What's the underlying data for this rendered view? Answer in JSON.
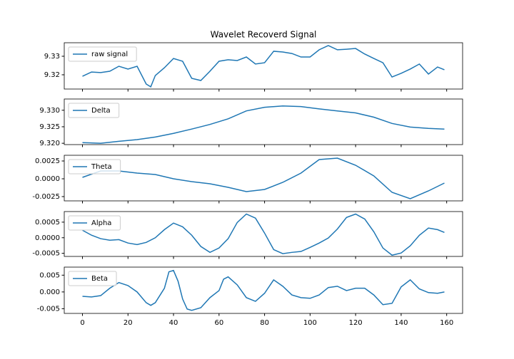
{
  "chart_data": [
    {
      "type": "line",
      "title": "Wavelet Recoverd Signal",
      "x": [
        0,
        4,
        8,
        12,
        16,
        20,
        24,
        28,
        30,
        32,
        36,
        40,
        44,
        48,
        52,
        56,
        60,
        64,
        68,
        72,
        76,
        80,
        84,
        88,
        92,
        96,
        100,
        104,
        108,
        112,
        116,
        120,
        124,
        128,
        132,
        136,
        140,
        144,
        148,
        152,
        156,
        159
      ],
      "series": [
        {
          "name": "raw signal",
          "color": "#1f77b4",
          "values": [
            9.3192,
            9.3215,
            9.3212,
            9.3219,
            9.3246,
            9.3231,
            9.3246,
            9.315,
            9.3135,
            9.3196,
            9.3238,
            9.3288,
            9.3273,
            9.3181,
            9.3169,
            9.3219,
            9.3273,
            9.3281,
            9.3277,
            9.3296,
            9.3258,
            9.3265,
            9.3327,
            9.3323,
            9.3315,
            9.3296,
            9.3296,
            9.3335,
            9.3358,
            9.3335,
            9.3338,
            9.3342,
            9.3312,
            9.3288,
            9.3265,
            9.3188,
            9.3208,
            9.3231,
            9.3258,
            9.3204,
            9.3242,
            9.3227
          ]
        }
      ],
      "xlim": [
        -8,
        167
      ],
      "ylim": [
        9.3123,
        9.3373
      ],
      "yticks": [
        9.32,
        9.33
      ],
      "legend": "upper left"
    },
    {
      "type": "line",
      "x": [
        0,
        8,
        16,
        24,
        32,
        40,
        48,
        56,
        64,
        72,
        80,
        88,
        96,
        104,
        112,
        120,
        128,
        136,
        144,
        152,
        159
      ],
      "series": [
        {
          "name": "Delta",
          "color": "#1f77b4",
          "values": [
            9.3202,
            9.32,
            9.3206,
            9.3211,
            9.3219,
            9.323,
            9.3243,
            9.3257,
            9.3274,
            9.3298,
            9.3309,
            9.3313,
            9.3311,
            9.3304,
            9.3298,
            9.3292,
            9.3279,
            9.326,
            9.3249,
            9.3245,
            9.3243
          ]
        }
      ],
      "xlim": [
        -8,
        167
      ],
      "ylim": [
        9.3196,
        9.3334
      ],
      "yticks": [
        {
          "value": 9.32,
          "label": "9.320"
        },
        9.325,
        {
          "value": 9.33,
          "label": "9.330"
        }
      ],
      "legend": "upper left"
    },
    {
      "type": "line",
      "x": [
        0,
        8,
        16,
        24,
        32,
        40,
        48,
        56,
        64,
        72,
        80,
        88,
        96,
        104,
        112,
        120,
        128,
        136,
        144,
        152,
        159
      ],
      "series": [
        {
          "name": "Theta",
          "color": "#1f77b4",
          "values": [
            0.0002,
            0.0011,
            0.0011,
            0.0008,
            0.0006,
            0,
            -0.0004,
            -0.0007,
            -0.0012,
            -0.0018,
            -0.0015,
            -0.0005,
            0.0008,
            0.0027,
            0.0029,
            0.0019,
            0.0004,
            -0.0019,
            -0.0028,
            -0.0017,
            -0.0006
          ]
        }
      ],
      "xlim": [
        -8,
        167
      ],
      "ylim": [
        -0.0031,
        0.0033
      ],
      "yticks": [
        -0.0025,
        {
          "value": 0,
          "label": "0.0000"
        },
        0.0025
      ],
      "legend": "upper left"
    },
    {
      "type": "line",
      "x": [
        0,
        4,
        8,
        12,
        16,
        20,
        24,
        28,
        32,
        36,
        40,
        44,
        48,
        52,
        56,
        60,
        64,
        68,
        72,
        76,
        80,
        84,
        88,
        92,
        96,
        100,
        104,
        108,
        112,
        116,
        120,
        124,
        128,
        132,
        136,
        140,
        144,
        148,
        152,
        156,
        159
      ],
      "series": [
        {
          "name": "Alpha",
          "color": "#1f77b4",
          "values": [
            0.00024,
            8e-05,
            -3e-05,
            -8e-05,
            -6e-05,
            -0.00017,
            -0.00022,
            -0.00015,
            0,
            0.00026,
            0.00047,
            0.00035,
            8e-05,
            -0.00028,
            -0.00047,
            -0.00033,
            -3e-05,
            0.00049,
            0.00076,
            0.00063,
            0.00015,
            -0.00038,
            -0.00051,
            -0.00047,
            -0.00044,
            -0.00031,
            -0.00017,
            -1e-05,
            0.00028,
            0.00065,
            0.00076,
            0.0006,
            0.00019,
            -0.00033,
            -0.00056,
            -0.00049,
            -0.00026,
            8e-05,
            0.00031,
            0.00026,
            0.00017
          ]
        }
      ],
      "xlim": [
        -8,
        167
      ],
      "ylim": [
        -0.0006,
        0.00084
      ],
      "yticks": [
        -0.0005,
        {
          "value": 0,
          "label": "0.0000"
        },
        0.0005
      ],
      "legend": "upper left"
    },
    {
      "type": "line",
      "x": [
        0,
        4,
        8,
        12,
        16,
        20,
        24,
        28,
        30,
        32,
        36,
        38,
        40,
        42,
        44,
        46,
        48,
        52,
        56,
        60,
        62,
        64,
        68,
        72,
        76,
        80,
        84,
        88,
        92,
        96,
        100,
        104,
        108,
        112,
        116,
        120,
        124,
        128,
        132,
        136,
        140,
        144,
        148,
        152,
        156,
        159
      ],
      "series": [
        {
          "name": "Beta",
          "color": "#1f77b4",
          "values": [
            -0.0013,
            -0.0015,
            -0.0011,
            0.0011,
            0.0028,
            0.0019,
            0,
            -0.0032,
            -0.004,
            -0.0032,
            0.0011,
            0.006,
            0.0064,
            0.0032,
            -0.0021,
            -0.0051,
            -0.0055,
            -0.0047,
            -0.0017,
            0.0004,
            0.0038,
            0.0045,
            0.0021,
            -0.0017,
            -0.0028,
            -0.0004,
            0.0036,
            0.0017,
            -0.0009,
            -0.0017,
            -0.0019,
            -0.0009,
            0.0013,
            0.0017,
            0.0004,
            0.0011,
            0.0011,
            -0.0009,
            -0.0038,
            -0.0034,
            0.0015,
            0.0036,
            0.0009,
            -0.0002,
            -0.0004,
            0
          ]
        }
      ],
      "xlim": [
        -8,
        167
      ],
      "ylim": [
        -0.0064,
        0.0074
      ],
      "yticks": [
        -0.005,
        {
          "value": 0,
          "label": "0.000"
        },
        0.005
      ],
      "xticks": [
        0,
        20,
        40,
        60,
        80,
        100,
        120,
        140,
        160
      ],
      "legend": "upper left"
    }
  ]
}
